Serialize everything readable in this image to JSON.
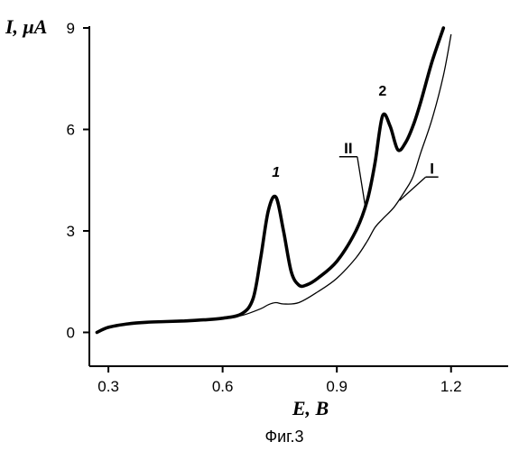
{
  "chart_data": {
    "type": "line",
    "title": "",
    "xlabel": "E, B",
    "ylabel": "I, μA",
    "caption": "Фиг.3",
    "xlim": [
      0.25,
      1.35
    ],
    "ylim": [
      -1,
      9
    ],
    "xticks": [
      "0.3",
      "0.6",
      "0.9",
      "1.2"
    ],
    "yticks": [
      "0",
      "3",
      "6",
      "9"
    ],
    "xtick_values": [
      0.3,
      0.6,
      0.9,
      1.2
    ],
    "ytick_values": [
      0,
      3,
      6,
      9
    ],
    "grid": false,
    "series": [
      {
        "name": "I",
        "style": "thin",
        "color": "#000000",
        "x": [
          0.27,
          0.3,
          0.35,
          0.4,
          0.45,
          0.5,
          0.55,
          0.6,
          0.65,
          0.7,
          0.72,
          0.74,
          0.76,
          0.8,
          0.85,
          0.9,
          0.95,
          0.98,
          1.0,
          1.02,
          1.05,
          1.08,
          1.1,
          1.12,
          1.15,
          1.18,
          1.2
        ],
        "y": [
          0.0,
          0.15,
          0.25,
          0.3,
          0.32,
          0.34,
          0.37,
          0.42,
          0.5,
          0.7,
          0.82,
          0.88,
          0.84,
          0.88,
          1.2,
          1.6,
          2.2,
          2.7,
          3.1,
          3.35,
          3.7,
          4.2,
          4.6,
          5.3,
          6.3,
          7.6,
          8.8
        ]
      },
      {
        "name": "II",
        "style": "bold",
        "color": "#000000",
        "x": [
          0.27,
          0.3,
          0.35,
          0.4,
          0.45,
          0.5,
          0.55,
          0.6,
          0.65,
          0.68,
          0.7,
          0.72,
          0.74,
          0.76,
          0.78,
          0.8,
          0.82,
          0.85,
          0.9,
          0.95,
          0.98,
          1.0,
          1.02,
          1.04,
          1.06,
          1.08,
          1.1,
          1.12,
          1.15,
          1.18
        ],
        "y": [
          0.0,
          0.15,
          0.25,
          0.3,
          0.32,
          0.34,
          0.37,
          0.42,
          0.55,
          1.0,
          2.2,
          3.6,
          4.0,
          3.0,
          1.8,
          1.4,
          1.4,
          1.6,
          2.1,
          3.0,
          3.9,
          5.0,
          6.4,
          6.1,
          5.4,
          5.6,
          6.1,
          6.8,
          8.0,
          9.0
        ]
      }
    ],
    "annotations": [
      {
        "text": "1",
        "x": 0.74,
        "y": 4.6
      },
      {
        "text": "2",
        "x": 1.02,
        "y": 7.0
      },
      {
        "text": "II",
        "x": 0.93,
        "y": 5.3
      },
      {
        "text": "I",
        "x": 1.15,
        "y": 4.7
      }
    ]
  }
}
